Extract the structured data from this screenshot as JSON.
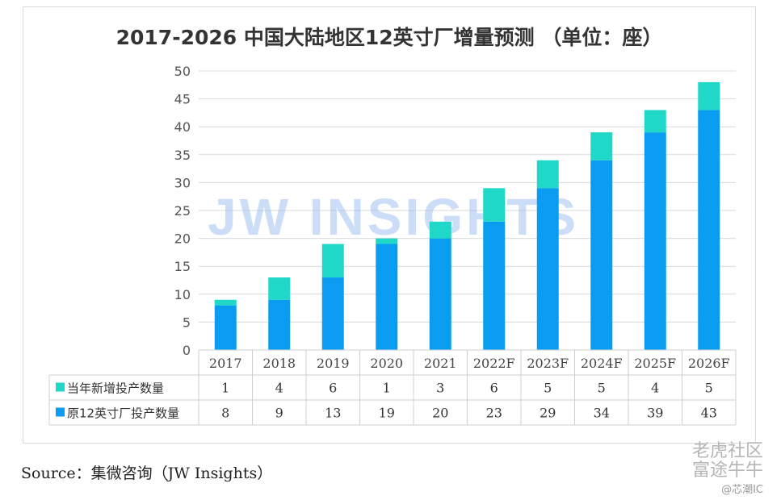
{
  "chart_data": {
    "type": "bar",
    "stacked": true,
    "title": "2017-2026 中国大陆地区12英寸厂增量预测 （单位：座）",
    "categories": [
      "2017",
      "2018",
      "2019",
      "2020",
      "2021",
      "2022F",
      "2023F",
      "2024F",
      "2025F",
      "2026F"
    ],
    "series": [
      {
        "name": "原12英寸厂投产数量",
        "values": [
          8,
          9,
          13,
          19,
          20,
          23,
          29,
          34,
          39,
          43
        ],
        "color": "#0a9cf0"
      },
      {
        "name": "当年新增投产数量",
        "values": [
          1,
          4,
          6,
          1,
          3,
          6,
          5,
          5,
          4,
          5
        ],
        "color": "#20d8c8"
      }
    ],
    "ylim": [
      0,
      50
    ],
    "yticks": [
      0,
      5,
      10,
      15,
      20,
      25,
      30,
      35,
      40,
      45,
      50
    ],
    "grid": true,
    "watermark": "JW INSIGHTS"
  },
  "source": "Source：集微咨询（JW Insights）",
  "corner_watermark": {
    "line1": "老虎社区",
    "line2": "富途牛牛",
    "line3": "@芯潮IC"
  }
}
